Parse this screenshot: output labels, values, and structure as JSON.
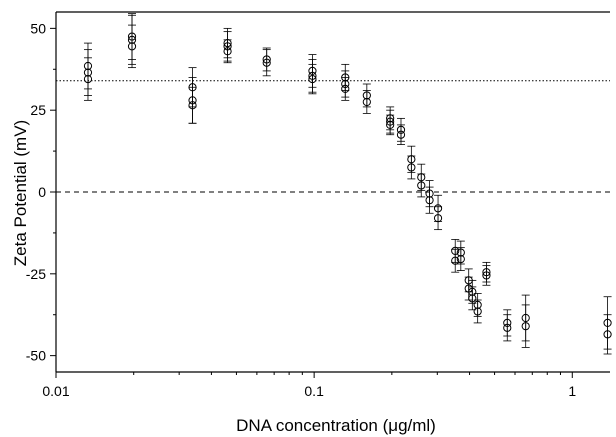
{
  "chart_data": {
    "type": "scatter",
    "title": "",
    "xlabel": "DNA concentration (μg/ml)",
    "ylabel": "Zeta Potential (mV)",
    "x_scale": "log",
    "xlim": [
      0.01,
      1.4
    ],
    "ylim": [
      -55,
      55
    ],
    "x_ticks": [
      {
        "value": 0.01,
        "label": "0.01"
      },
      {
        "value": 0.1,
        "label": "0.1"
      },
      {
        "value": 1,
        "label": "1"
      }
    ],
    "y_ticks": [
      {
        "value": 50,
        "label": "50"
      },
      {
        "value": 25,
        "label": "25"
      },
      {
        "value": 0,
        "label": "0"
      },
      {
        "value": -25,
        "label": "-25"
      },
      {
        "value": -50,
        "label": "-50"
      }
    ],
    "reference_lines": [
      {
        "y": 34,
        "style": "dotted"
      },
      {
        "y": 0,
        "style": "dashed"
      }
    ],
    "marker": "open-circle",
    "error_bars": true,
    "points": [
      {
        "x": 0.0133,
        "y": 38.5,
        "err": 7
      },
      {
        "x": 0.0133,
        "y": 36.5,
        "err": 7
      },
      {
        "x": 0.0133,
        "y": 34.5,
        "err": 6.5
      },
      {
        "x": 0.0197,
        "y": 47.5,
        "err": 7
      },
      {
        "x": 0.0197,
        "y": 46.5,
        "err": 7.5
      },
      {
        "x": 0.0197,
        "y": 44.5,
        "err": 6.5
      },
      {
        "x": 0.0338,
        "y": 32,
        "err": 6
      },
      {
        "x": 0.0338,
        "y": 28,
        "err": 7
      },
      {
        "x": 0.0338,
        "y": 26.5,
        "err": 5.5
      },
      {
        "x": 0.0462,
        "y": 45.5,
        "err": 4.5
      },
      {
        "x": 0.0462,
        "y": 44.5,
        "err": 4.5
      },
      {
        "x": 0.0462,
        "y": 43,
        "err": 3.5
      },
      {
        "x": 0.0655,
        "y": 40.5,
        "err": 3.5
      },
      {
        "x": 0.0655,
        "y": 39.5,
        "err": 4
      },
      {
        "x": 0.0985,
        "y": 37,
        "err": 5
      },
      {
        "x": 0.0985,
        "y": 35.5,
        "err": 5
      },
      {
        "x": 0.0985,
        "y": 34.5,
        "err": 4.5
      },
      {
        "x": 0.132,
        "y": 35,
        "err": 4
      },
      {
        "x": 0.132,
        "y": 33,
        "err": 4
      },
      {
        "x": 0.132,
        "y": 31.5,
        "err": 3.5
      },
      {
        "x": 0.16,
        "y": 29.5,
        "err": 3.5
      },
      {
        "x": 0.16,
        "y": 27.5,
        "err": 3.5
      },
      {
        "x": 0.197,
        "y": 22.5,
        "err": 3.5
      },
      {
        "x": 0.197,
        "y": 21.5,
        "err": 3.5
      },
      {
        "x": 0.197,
        "y": 20.5,
        "err": 3
      },
      {
        "x": 0.217,
        "y": 19,
        "err": 3.5
      },
      {
        "x": 0.217,
        "y": 17.5,
        "err": 3
      },
      {
        "x": 0.238,
        "y": 10,
        "err": 4
      },
      {
        "x": 0.238,
        "y": 7.5,
        "err": 3.5
      },
      {
        "x": 0.26,
        "y": 4.5,
        "err": 4
      },
      {
        "x": 0.26,
        "y": 2,
        "err": 3.5
      },
      {
        "x": 0.28,
        "y": -0.5,
        "err": 4
      },
      {
        "x": 0.28,
        "y": -2.5,
        "err": 4
      },
      {
        "x": 0.302,
        "y": -5,
        "err": 4
      },
      {
        "x": 0.302,
        "y": -8,
        "err": 3.5
      },
      {
        "x": 0.352,
        "y": -18,
        "err": 3.5
      },
      {
        "x": 0.352,
        "y": -21,
        "err": 3.5
      },
      {
        "x": 0.37,
        "y": -18.5,
        "err": 3.5
      },
      {
        "x": 0.37,
        "y": -20.5,
        "err": 3.5
      },
      {
        "x": 0.397,
        "y": -27,
        "err": 3.5
      },
      {
        "x": 0.397,
        "y": -29.5,
        "err": 3.5
      },
      {
        "x": 0.41,
        "y": -30.5,
        "err": 3.5
      },
      {
        "x": 0.41,
        "y": -32.5,
        "err": 3.5
      },
      {
        "x": 0.43,
        "y": -34.5,
        "err": 3.5
      },
      {
        "x": 0.43,
        "y": -36.5,
        "err": 3.5
      },
      {
        "x": 0.465,
        "y": -24.5,
        "err": 3
      },
      {
        "x": 0.465,
        "y": -25.5,
        "err": 3
      },
      {
        "x": 0.56,
        "y": -40,
        "err": 4
      },
      {
        "x": 0.56,
        "y": -41.5,
        "err": 4
      },
      {
        "x": 0.66,
        "y": -38.5,
        "err": 7
      },
      {
        "x": 0.66,
        "y": -41,
        "err": 6.5
      },
      {
        "x": 1.37,
        "y": -40,
        "err": 8
      },
      {
        "x": 1.37,
        "y": -43.5,
        "err": 6
      }
    ]
  }
}
